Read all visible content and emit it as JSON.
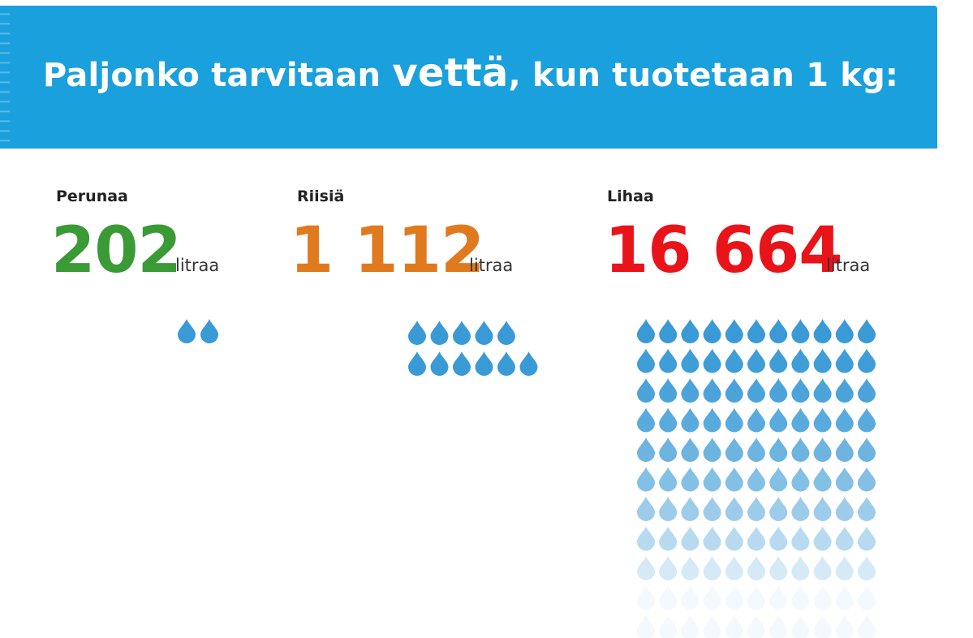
{
  "header": {
    "title_part1": "Paljonko tarvitaan",
    "title_emphasis": "vettä",
    "title_part2": ", kun tuotetaan 1 kg:",
    "background_color": "#1aa0dc"
  },
  "chart_data": {
    "type": "pictogram",
    "title": "Paljonko tarvitaan vettä, kun tuotetaan 1 kg:",
    "unit": "litraa",
    "icon": "water-drop-icon",
    "drop_color": "#3a9ad6",
    "series": [
      {
        "name": "Perunaa",
        "value": 202,
        "display": "202",
        "color": "#3a9a35",
        "drops": 2
      },
      {
        "name": "Riisiä",
        "value": 1112,
        "display": "1 112",
        "color": "#e07a1f",
        "drops": 11
      },
      {
        "name": "Lihaa",
        "value": 16664,
        "display": "16 664",
        "color": "#e8141a",
        "drops": 121
      }
    ]
  }
}
